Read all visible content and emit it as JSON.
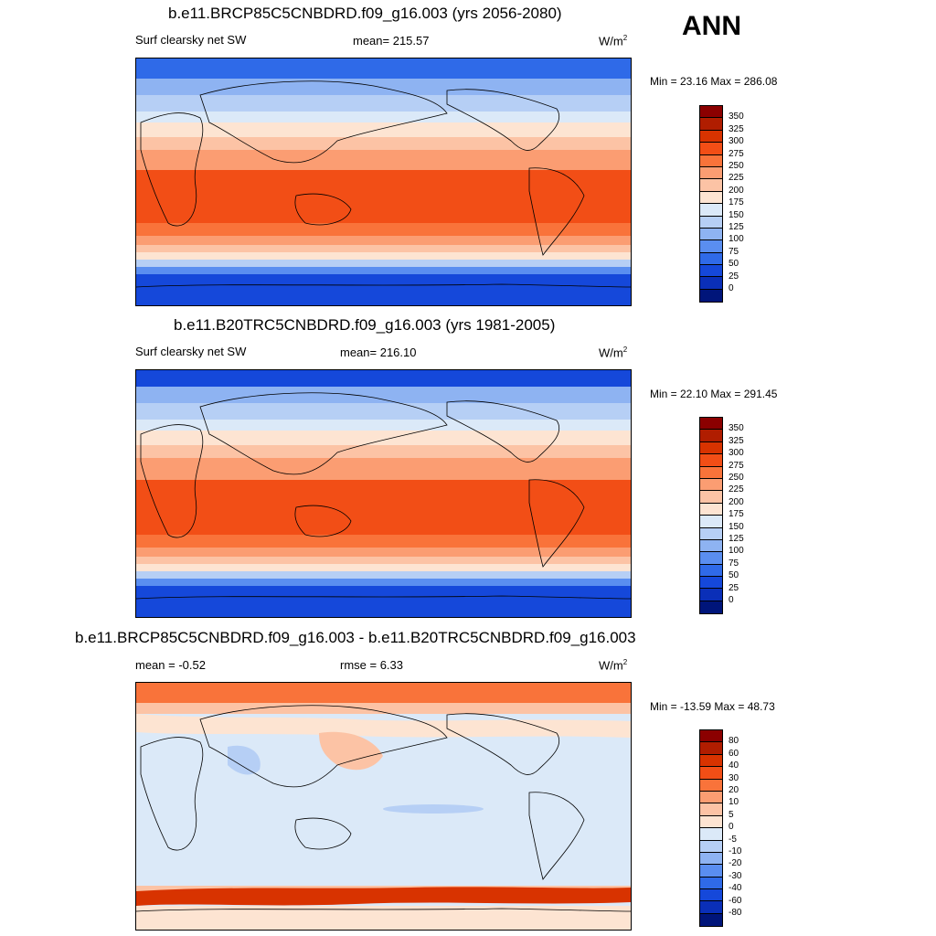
{
  "season": "ANN",
  "panels": [
    {
      "title": "b.e11.BRCP85C5CNBDRD.f09_g16.003 (yrs 2056-2080)",
      "left_label": "Surf clearsky net SW",
      "center_label": "mean= 215.57",
      "units": "W/m",
      "units_sup": "2",
      "minmax": "Min =  23.16 Max = 286.08",
      "colorbar_labels": [
        "350",
        "325",
        "300",
        "275",
        "250",
        "225",
        "200",
        "175",
        "150",
        "125",
        "100",
        "75",
        "50",
        "25",
        "0"
      ],
      "colorbar_colors": [
        "#8b0000",
        "#b01d00",
        "#d83300",
        "#f24e16",
        "#f9733a",
        "#fb9d72",
        "#fcc3a5",
        "#fde4d2",
        "#dbe9f8",
        "#b6cff5",
        "#8eb3f2",
        "#5a8ef0",
        "#2f6ae8",
        "#1548da",
        "#0a2fb8",
        "#00157a"
      ]
    },
    {
      "title": "b.e11.B20TRC5CNBDRD.f09_g16.003 (yrs 1981-2005)",
      "left_label": "Surf clearsky net SW",
      "center_label": "mean= 216.10",
      "units": "W/m",
      "units_sup": "2",
      "minmax": "Min =  22.10 Max = 291.45",
      "colorbar_labels": [
        "350",
        "325",
        "300",
        "275",
        "250",
        "225",
        "200",
        "175",
        "150",
        "125",
        "100",
        "75",
        "50",
        "25",
        "0"
      ],
      "colorbar_colors": [
        "#8b0000",
        "#b01d00",
        "#d83300",
        "#f24e16",
        "#f9733a",
        "#fb9d72",
        "#fcc3a5",
        "#fde4d2",
        "#dbe9f8",
        "#b6cff5",
        "#8eb3f2",
        "#5a8ef0",
        "#2f6ae8",
        "#1548da",
        "#0a2fb8",
        "#00157a"
      ]
    },
    {
      "title": "b.e11.BRCP85C5CNBDRD.f09_g16.003 - b.e11.B20TRC5CNBDRD.f09_g16.003",
      "left_label": "mean =  -0.52",
      "center_label": "rmse =   6.33",
      "units": "W/m",
      "units_sup": "2",
      "minmax": "Min = -13.59 Max =  48.73",
      "colorbar_labels": [
        "80",
        "60",
        "40",
        "30",
        "20",
        "10",
        "5",
        "0",
        "-5",
        "-10",
        "-20",
        "-30",
        "-40",
        "-60",
        "-80"
      ],
      "colorbar_colors": [
        "#8b0000",
        "#b01d00",
        "#d83300",
        "#f24e16",
        "#f9733a",
        "#fb9d72",
        "#fcc3a5",
        "#fde4d2",
        "#dbe9f8",
        "#b6cff5",
        "#8eb3f2",
        "#5a8ef0",
        "#2f6ae8",
        "#1548da",
        "#0a2fb8",
        "#00157a"
      ]
    }
  ]
}
